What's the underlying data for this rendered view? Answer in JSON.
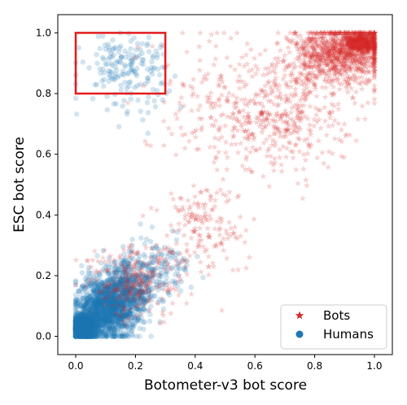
{
  "chart_data": {
    "type": "scatter",
    "xlabel": "Botometer-v3 bot score",
    "ylabel": "ESC bot score",
    "xlim": [
      -0.06,
      1.06
    ],
    "ylim": [
      -0.06,
      1.06
    ],
    "x_ticks": [
      {
        "value": 0.0,
        "label": "0.0"
      },
      {
        "value": 0.2,
        "label": "0.2"
      },
      {
        "value": 0.4,
        "label": "0.4"
      },
      {
        "value": 0.6,
        "label": "0.6"
      },
      {
        "value": 0.8,
        "label": "0.8"
      },
      {
        "value": 1.0,
        "label": "1.0"
      }
    ],
    "y_ticks": [
      {
        "value": 0.0,
        "label": "0.0"
      },
      {
        "value": 0.2,
        "label": "0.2"
      },
      {
        "value": 0.4,
        "label": "0.4"
      },
      {
        "value": 0.6,
        "label": "0.6"
      },
      {
        "value": 0.8,
        "label": "0.8"
      },
      {
        "value": 1.0,
        "label": "1.0"
      }
    ],
    "grid": false,
    "legend": "lower-right",
    "series": [
      {
        "name": "Bots",
        "marker": "star",
        "color": "#d62728",
        "clusters": [
          {
            "center": [
              0.88,
              0.93
            ],
            "spread": [
              0.08,
              0.05
            ],
            "count": 900
          },
          {
            "center": [
              0.96,
              0.97
            ],
            "spread": [
              0.03,
              0.02
            ],
            "count": 500
          },
          {
            "center": [
              0.68,
              0.74
            ],
            "spread": [
              0.12,
              0.1
            ],
            "count": 450
          },
          {
            "center": [
              0.45,
              0.78
            ],
            "spread": [
              0.12,
              0.12
            ],
            "count": 120
          },
          {
            "center": [
              0.42,
              0.36
            ],
            "spread": [
              0.07,
              0.08
            ],
            "count": 160
          },
          {
            "center": [
              0.2,
              0.18
            ],
            "spread": [
              0.08,
              0.06
            ],
            "count": 250
          }
        ]
      },
      {
        "name": "Humans",
        "marker": "circle",
        "color": "#1f77b4",
        "clusters": [
          {
            "center": [
              0.03,
              0.03
            ],
            "spread": [
              0.02,
              0.02
            ],
            "count": 1300
          },
          {
            "center": [
              0.1,
              0.09
            ],
            "spread": [
              0.05,
              0.05
            ],
            "count": 1300
          },
          {
            "center": [
              0.17,
              0.15
            ],
            "spread": [
              0.05,
              0.05
            ],
            "count": 500
          },
          {
            "center": [
              0.27,
              0.22
            ],
            "spread": [
              0.06,
              0.05
            ],
            "count": 150
          },
          {
            "center": [
              0.17,
              0.88
            ],
            "spread": [
              0.07,
              0.06
            ],
            "count": 180
          }
        ]
      }
    ],
    "highlight_box": {
      "x": [
        0.0,
        0.3
      ],
      "y": [
        0.8,
        1.0
      ],
      "color": "#e31a1c"
    }
  }
}
